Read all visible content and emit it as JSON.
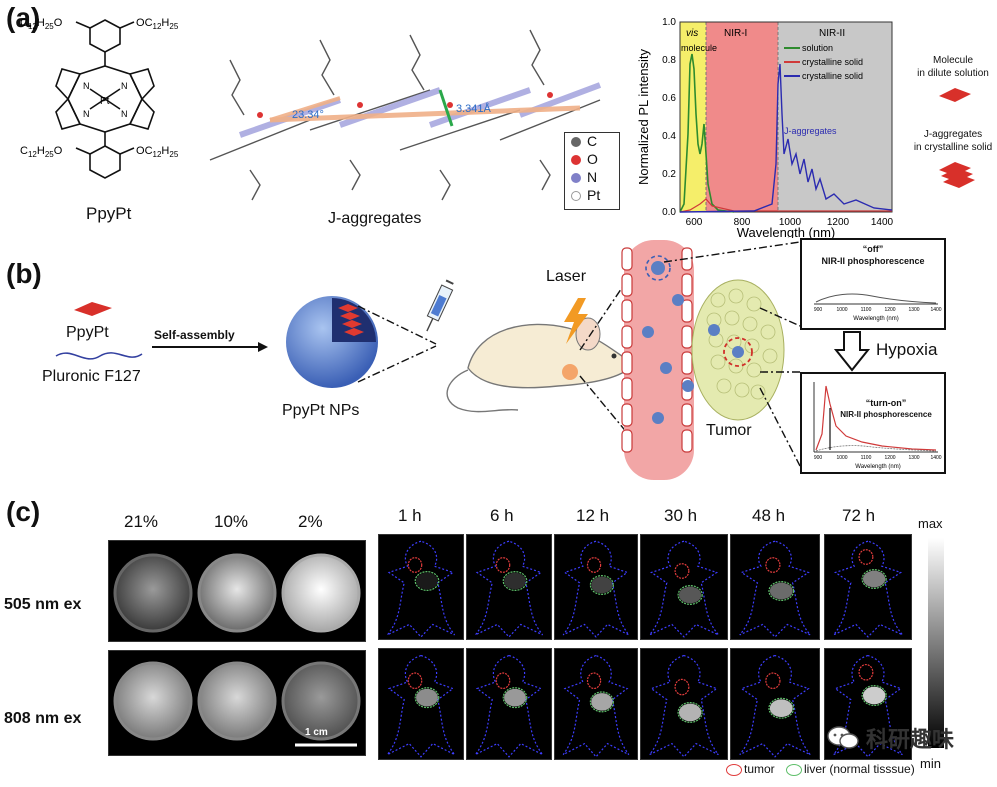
{
  "panel_a": {
    "label": "(a)",
    "molecule": {
      "name": "PpyPt",
      "substituent": "O C12H25",
      "sub_main": "C",
      "sub_num": "12",
      "sub_h": "H",
      "sub_hnum": "25",
      "o": "O",
      "metal": "Pt",
      "n": "N"
    },
    "crystal": {
      "caption": "J-aggregates",
      "angle": "23.34°",
      "distance": "3.341Å",
      "legend": [
        "C",
        "O",
        "N",
        "Pt"
      ]
    },
    "chart": {
      "regions": [
        "vis",
        "NIR-I",
        "NIR-II"
      ],
      "molecule_label": "molecule",
      "jagg_label": "J-aggregates",
      "ylabel": "Normalized PL intensity",
      "xlabel": "Wavelength (nm)",
      "xticks": [
        "600",
        "800",
        "1000",
        "1200",
        "1400"
      ],
      "yticks": [
        "0.0",
        "0.2",
        "0.4",
        "0.6",
        "0.8",
        "1.0"
      ],
      "legend": [
        "solution",
        "crystalline solid",
        "crystalline solid"
      ]
    },
    "schematic": {
      "top": [
        "Molecule",
        "in dilute solution"
      ],
      "bottom": [
        "J-aggregates",
        "in crystalline solid"
      ]
    }
  },
  "panel_b": {
    "label": "(b)",
    "ppypt": "PpyPt",
    "pluronic": "Pluronic F127",
    "self_assembly": "Self-assembly",
    "nps": "PpyPt NPs",
    "laser": "Laser",
    "tumor": "Tumor",
    "hypoxia": "Hypoxia",
    "box_off": {
      "quote": "“off”",
      "title": "NIR-II phosphorescence",
      "xticks": [
        "900",
        "1000",
        "1100",
        "1200",
        "1300",
        "1400"
      ],
      "xlabel": "Wavelength (nm)"
    },
    "box_on": {
      "quote": "“turn-on”",
      "title": "NIR-II phosphorescence",
      "xticks": [
        "900",
        "1000",
        "1100",
        "1200",
        "1300",
        "1400"
      ],
      "xlabel": "Wavelength (nm)"
    }
  },
  "panel_c": {
    "label": "(c)",
    "percents": [
      "21%",
      "10%",
      "2%"
    ],
    "ex_labels": [
      "505 nm ex",
      "808 nm ex"
    ],
    "scale_bar": "1 cm",
    "times": [
      "1 h",
      "6 h",
      "12 h",
      "30 h",
      "48 h",
      "72 h"
    ],
    "colorbar": {
      "max": "max",
      "min": "min"
    },
    "legend_tumor": "tumor",
    "legend_liver": "liver (normal tisssue)",
    "watermark": "科研趣味"
  },
  "colors": {
    "vis": "#f5ee6a",
    "nir1": "#f08a8a",
    "nir2": "#c8c8c8",
    "solution": "#2e8b2e",
    "crystal_red": "#d03a3a",
    "crystal_blue": "#2b2bb0",
    "vessel": "#f2a6a6",
    "tumor_tissue": "#e4eab0",
    "np": "#5b7fc4",
    "tumor_circle": "#e03c3c",
    "liver_circle": "#5fbf6a",
    "outline": "#3d3dff"
  }
}
